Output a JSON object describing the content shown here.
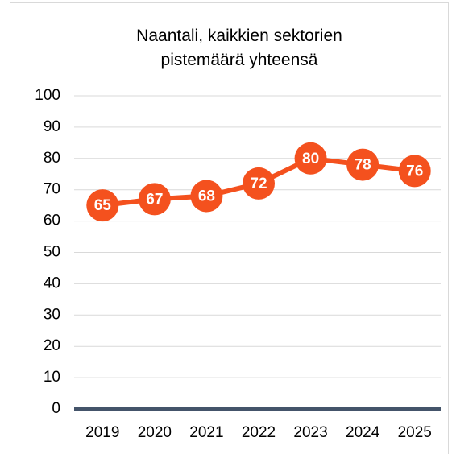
{
  "chart_data": {
    "type": "line",
    "title": "Naantali, kaikkien sektorien pistemäärä yhteensä",
    "categories": [
      "2019",
      "2020",
      "2021",
      "2022",
      "2023",
      "2024",
      "2025"
    ],
    "values": [
      65,
      67,
      68,
      72,
      80,
      78,
      76
    ],
    "color": "#f4511e",
    "ylim": [
      0,
      100
    ],
    "yticks": [
      0,
      10,
      20,
      30,
      40,
      50,
      60,
      70,
      80,
      90,
      100
    ],
    "grid": true
  }
}
